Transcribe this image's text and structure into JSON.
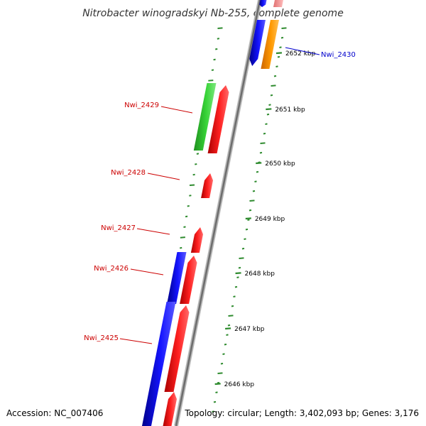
{
  "title": "Nitrobacter winogradskyi Nb-255, complete genome",
  "footer": {
    "accession": "Accession: NC_007406",
    "summary": "Topology: circular; Length: 3,402,093 bp; Genes: 3,176"
  },
  "colors": {
    "backbone": "#8a8a8a",
    "tick": "#2e8b2e",
    "label_default": "#cc0000",
    "label_highlight": "#0000cc",
    "forward_cds": "#ff0000",
    "reverse_cds": "#0000ff",
    "rna": "#33cc33",
    "highlight_gene": "#ff9900"
  },
  "scale_ticks": [
    "2652 kbp",
    "2651 kbp",
    "2650 kbp",
    "2649 kbp",
    "2648 kbp",
    "2647 kbp",
    "2646 kbp"
  ],
  "gene_labels": [
    {
      "name": "Nwi_2430",
      "color": "#0000cc"
    },
    {
      "name": "Nwi_2429",
      "color": "#cc0000"
    },
    {
      "name": "Nwi_2428",
      "color": "#cc0000"
    },
    {
      "name": "Nwi_2427",
      "color": "#cc0000"
    },
    {
      "name": "Nwi_2426",
      "color": "#cc0000"
    },
    {
      "name": "Nwi_2425",
      "color": "#cc0000"
    }
  ]
}
